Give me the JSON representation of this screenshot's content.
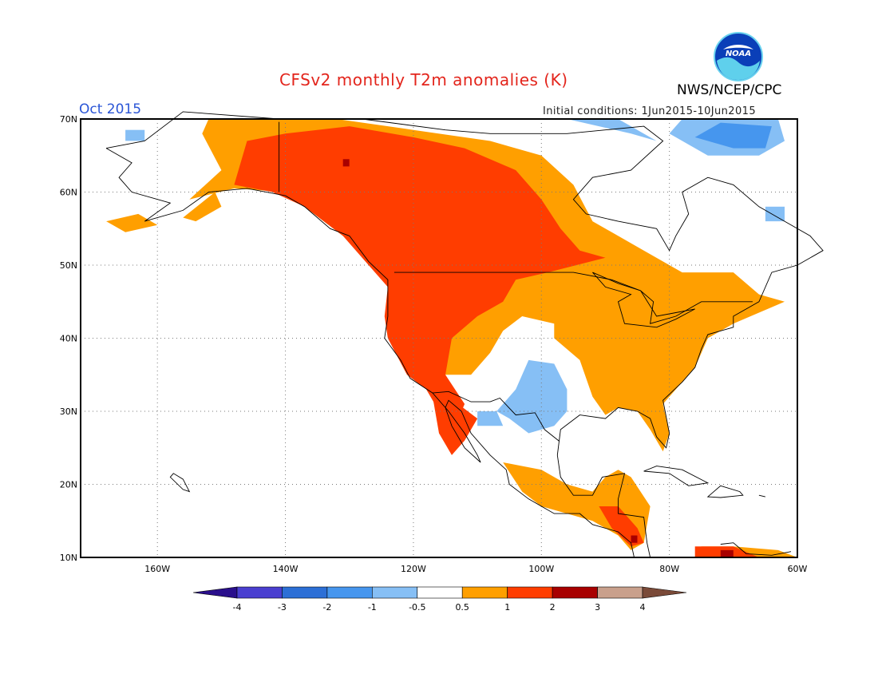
{
  "header": {
    "title": "CFSv2 monthly T2m anomalies (K)",
    "forecast_month": "Oct 2015",
    "initial_conditions": "Initial conditions: 1Jun2015-10Jun2015",
    "agency": "NWS/NCEP/CPC",
    "logo_text": "NOAA"
  },
  "map": {
    "lon_range": [
      -172,
      -60
    ],
    "lat_range": [
      10,
      70
    ],
    "lat_labels": [
      "70N",
      "60N",
      "50N",
      "40N",
      "30N",
      "20N",
      "10N"
    ],
    "lat_values": [
      70,
      60,
      50,
      40,
      30,
      20,
      10
    ],
    "lon_labels": [
      "160W",
      "140W",
      "120W",
      "100W",
      "80W",
      "60W"
    ],
    "lon_values": [
      -160,
      -140,
      -120,
      -100,
      -80,
      -60
    ],
    "grid": "dotted",
    "coastline_color": "#000000"
  },
  "colorbar": {
    "tick_labels": [
      "-4",
      "-3",
      "-2",
      "-1",
      "-0.5",
      "0.5",
      "1",
      "2",
      "3",
      "4"
    ],
    "colors": [
      "#2a0f8c",
      "#4a3fd0",
      "#2c6fd6",
      "#4696ee",
      "#86bff5",
      "#ffffff",
      "#ff9f00",
      "#ff3d00",
      "#a80000",
      "#c9a08c",
      "#7a4a38"
    ]
  },
  "anomaly_regions": [
    {
      "category": "warm-0.5-1",
      "color": "#ff9f00",
      "desc": "Alaska, western & central Canada, east US"
    },
    {
      "category": "warm-1-2",
      "color": "#ff3d00",
      "desc": "western Canada & US west"
    },
    {
      "category": "cool-0.5-1",
      "color": "#86bff5",
      "desc": "Texas, Arctic islands"
    },
    {
      "category": "cool-1-2",
      "color": "#4696ee",
      "desc": "Baffin region"
    },
    {
      "category": "warm-2-3",
      "color": "#a80000",
      "desc": "isolated cells"
    }
  ]
}
